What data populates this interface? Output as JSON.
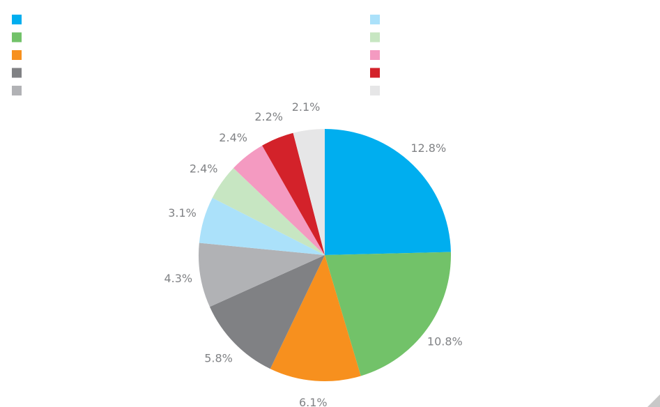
{
  "chart_data": {
    "type": "pie",
    "categories": [
      null,
      null,
      null,
      null,
      null,
      null,
      null,
      null,
      null,
      null
    ],
    "values": [
      12.8,
      10.8,
      6.1,
      5.8,
      4.3,
      3.1,
      2.4,
      2.4,
      2.2,
      2.1
    ],
    "value_labels": [
      "12.8%",
      "10.8%",
      "6.1%",
      "5.8%",
      "4.3%",
      "3.1%",
      "2.4%",
      "2.4%",
      "2.2%",
      "2.1%"
    ],
    "colors": [
      "#00aeef",
      "#72c269",
      "#f7901e",
      "#808184",
      "#b1b2b5",
      "#abe1fa",
      "#c7e6c2",
      "#f49ac1",
      "#d3222a",
      "#e6e6e7"
    ],
    "legend": "top"
  }
}
